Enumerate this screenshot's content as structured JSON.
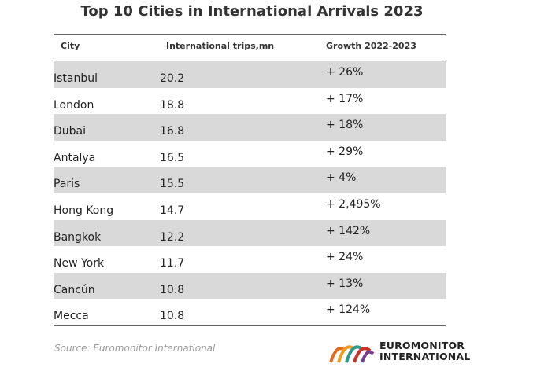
{
  "chart_data": {
    "type": "table",
    "title": "Top 10 Cities in International Arrivals 2023",
    "columns": [
      "City",
      "International trips,mn",
      "Growth 2022-2023"
    ],
    "rows": [
      {
        "city": "Istanbul",
        "trips": "20.2",
        "growth": "+ 26%"
      },
      {
        "city": "London",
        "trips": "18.8",
        "growth": "+ 17%"
      },
      {
        "city": "Dubai",
        "trips": "16.8",
        "growth": "+ 18%"
      },
      {
        "city": "Antalya",
        "trips": "16.5",
        "growth": "+ 29%"
      },
      {
        "city": "Paris",
        "trips": "15.5",
        "growth": "+ 4%"
      },
      {
        "city": "Hong Kong",
        "trips": "14.7",
        "growth": "+ 2,495%"
      },
      {
        "city": "Bangkok",
        "trips": "12.2",
        "growth": "+ 142%"
      },
      {
        "city": "New York",
        "trips": "11.7",
        "growth": "+ 24%"
      },
      {
        "city": "Cancún",
        "trips": "10.8",
        "growth": "+ 13%"
      },
      {
        "city": "Mecca",
        "trips": "10.8",
        "growth": "+ 124%"
      }
    ],
    "shade_color": "#d9d9d9"
  },
  "source": "Source: Euromonitor International",
  "logo": {
    "line1": "EUROMONITOR",
    "line2": "INTERNATIONAL"
  }
}
